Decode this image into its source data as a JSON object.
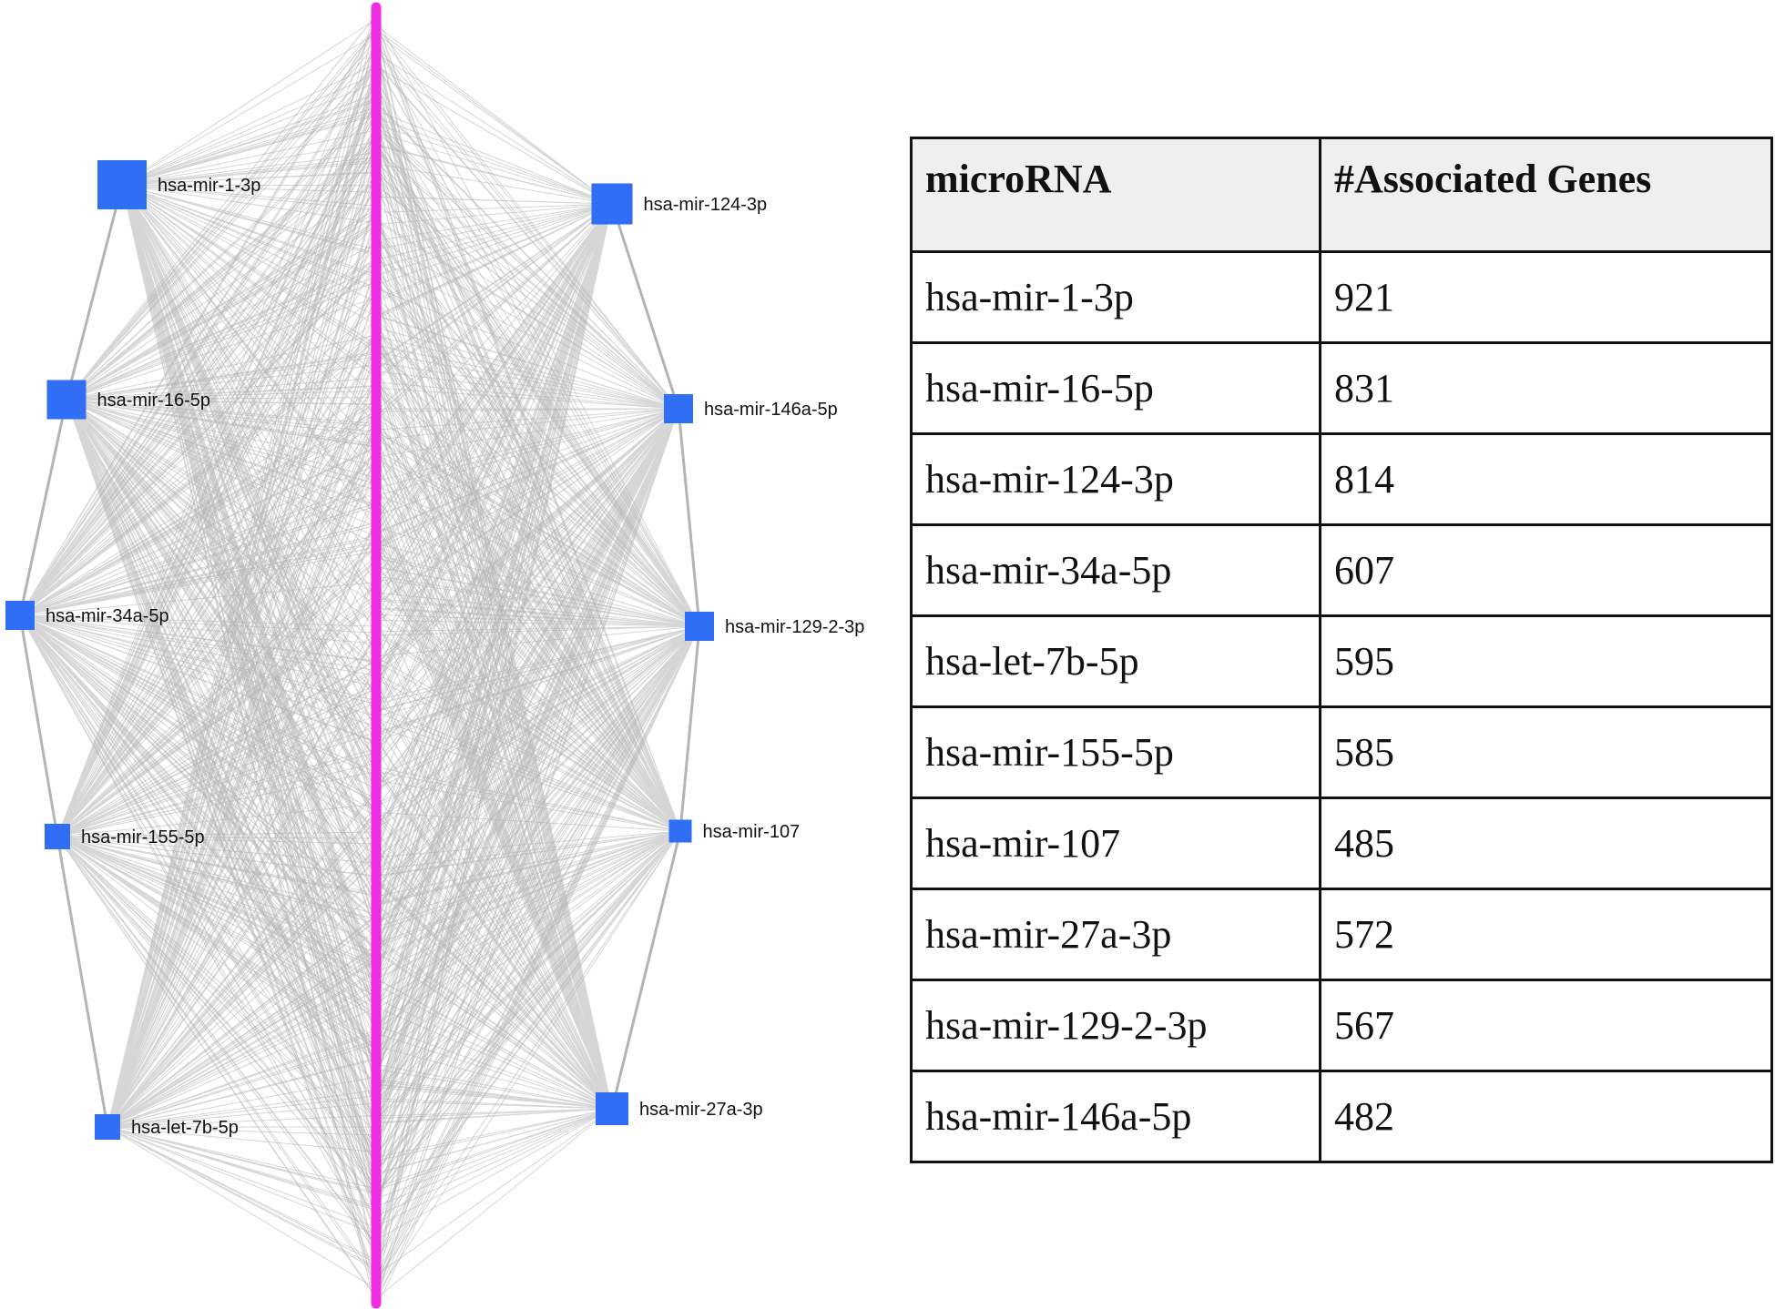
{
  "diagram": {
    "left_nodes": [
      {
        "id": "mir-1-3p",
        "label": "hsa-mir-1-3p"
      },
      {
        "id": "mir-16-5p",
        "label": "hsa-mir-16-5p"
      },
      {
        "id": "mir-34a-5p",
        "label": "hsa-mir-34a-5p"
      },
      {
        "id": "mir-155-5p",
        "label": "hsa-mir-155-5p"
      },
      {
        "id": "let-7b-5p",
        "label": "hsa-let-7b-5p"
      }
    ],
    "right_nodes": [
      {
        "id": "mir-124-3p",
        "label": "hsa-mir-124-3p"
      },
      {
        "id": "mir-146a-5p",
        "label": "hsa-mir-146a-5p"
      },
      {
        "id": "mir-129-2-3p",
        "label": "hsa-mir-129-2-3p"
      },
      {
        "id": "mir-107",
        "label": "hsa-mir-107"
      },
      {
        "id": "mir-27a-3p",
        "label": "hsa-mir-27a-3p"
      }
    ],
    "colors": {
      "node": "#2f6ef5",
      "edge": "#b4b4b4",
      "gene_axis": "#ee2ee0"
    }
  },
  "table": {
    "headers": [
      "microRNA",
      "#Associated Genes"
    ],
    "rows": [
      [
        "hsa-mir-1-3p",
        "921"
      ],
      [
        "hsa-mir-16-5p",
        "831"
      ],
      [
        "hsa-mir-124-3p",
        "814"
      ],
      [
        "hsa-mir-34a-5p",
        "607"
      ],
      [
        "hsa-let-7b-5p",
        "595"
      ],
      [
        "hsa-mir-155-5p",
        "585"
      ],
      [
        "hsa-mir-107",
        "485"
      ],
      [
        "hsa-mir-27a-3p",
        "572"
      ],
      [
        "hsa-mir-129-2-3p",
        "567"
      ],
      [
        "hsa-mir-146a-5p",
        "482"
      ]
    ]
  }
}
